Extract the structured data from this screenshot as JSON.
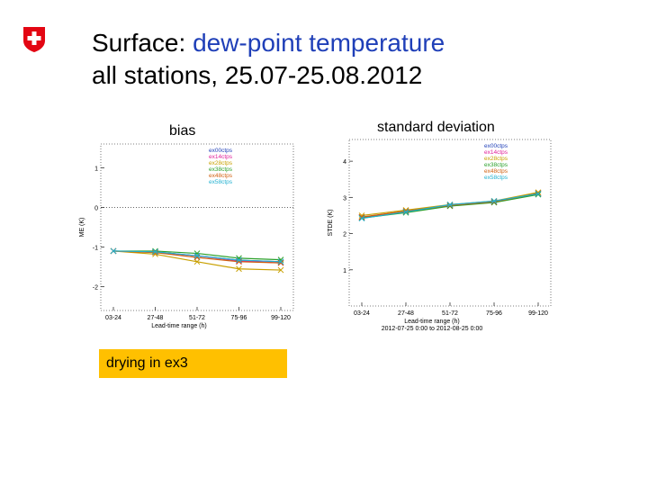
{
  "slide": {
    "title_prefix": "Surface: ",
    "title_highlight": "dew-point temperature",
    "title_line2": "all stations, 25.07-25.08.2012",
    "note": "drying in ex3",
    "colors": {
      "highlight": "#1f3fb8",
      "note_bg": "#ffc000",
      "logo": "#e30613"
    }
  },
  "chart_data": [
    {
      "type": "line",
      "title": "bias",
      "ylabel": "ME (K)",
      "xlabel": "Lead-time range (h)",
      "categories": [
        "03-24",
        "27-48",
        "51-72",
        "75-96",
        "99-120"
      ],
      "ylim": [
        -2.6,
        1.6
      ],
      "yticks": [
        -2,
        -1,
        0,
        1
      ],
      "zero_line": true,
      "legend_position": "top-right",
      "series": [
        {
          "name": "ex00ctps",
          "color": "#1f3fb8",
          "values": [
            -1.1,
            -1.12,
            -1.22,
            -1.33,
            -1.37
          ]
        },
        {
          "name": "ex14ctps",
          "color": "#e0209a",
          "values": [
            -1.1,
            -1.13,
            -1.22,
            -1.35,
            -1.4
          ]
        },
        {
          "name": "ex28ctps",
          "color": "#c8a000",
          "values": [
            -1.1,
            -1.18,
            -1.37,
            -1.55,
            -1.58
          ]
        },
        {
          "name": "ex38ctps",
          "color": "#2aa02a",
          "values": [
            -1.1,
            -1.1,
            -1.16,
            -1.28,
            -1.32
          ]
        },
        {
          "name": "ex48ctps",
          "color": "#d06010",
          "values": [
            -1.1,
            -1.14,
            -1.26,
            -1.37,
            -1.4
          ]
        },
        {
          "name": "ex58ctps",
          "color": "#20b0d0",
          "values": [
            -1.1,
            -1.12,
            -1.22,
            -1.33,
            -1.37
          ]
        }
      ]
    },
    {
      "type": "line",
      "title": "standard deviation",
      "ylabel": "STDE (K)",
      "xlabel": "Lead-time range (h)",
      "period": "2012-07-25 0:00 to 2012-08-25 0:00",
      "categories": [
        "03-24",
        "27-48",
        "51-72",
        "75-96",
        "99-120"
      ],
      "ylim": [
        0,
        4.6
      ],
      "yticks": [
        1,
        2,
        3,
        4
      ],
      "legend_position": "top-right",
      "series": [
        {
          "name": "ex00ctps",
          "color": "#1f3fb8",
          "values": [
            2.45,
            2.62,
            2.78,
            2.88,
            3.12
          ]
        },
        {
          "name": "ex14ctps",
          "color": "#e0209a",
          "values": [
            2.45,
            2.6,
            2.77,
            2.87,
            3.1
          ]
        },
        {
          "name": "ex28ctps",
          "color": "#c8a000",
          "values": [
            2.5,
            2.65,
            2.8,
            2.9,
            3.14
          ]
        },
        {
          "name": "ex38ctps",
          "color": "#2aa02a",
          "values": [
            2.43,
            2.58,
            2.76,
            2.86,
            3.08
          ]
        },
        {
          "name": "ex48ctps",
          "color": "#d06010",
          "values": [
            2.46,
            2.62,
            2.78,
            2.88,
            3.11
          ]
        },
        {
          "name": "ex58ctps",
          "color": "#20b0d0",
          "values": [
            2.42,
            2.6,
            2.8,
            2.9,
            3.1
          ]
        }
      ]
    }
  ]
}
